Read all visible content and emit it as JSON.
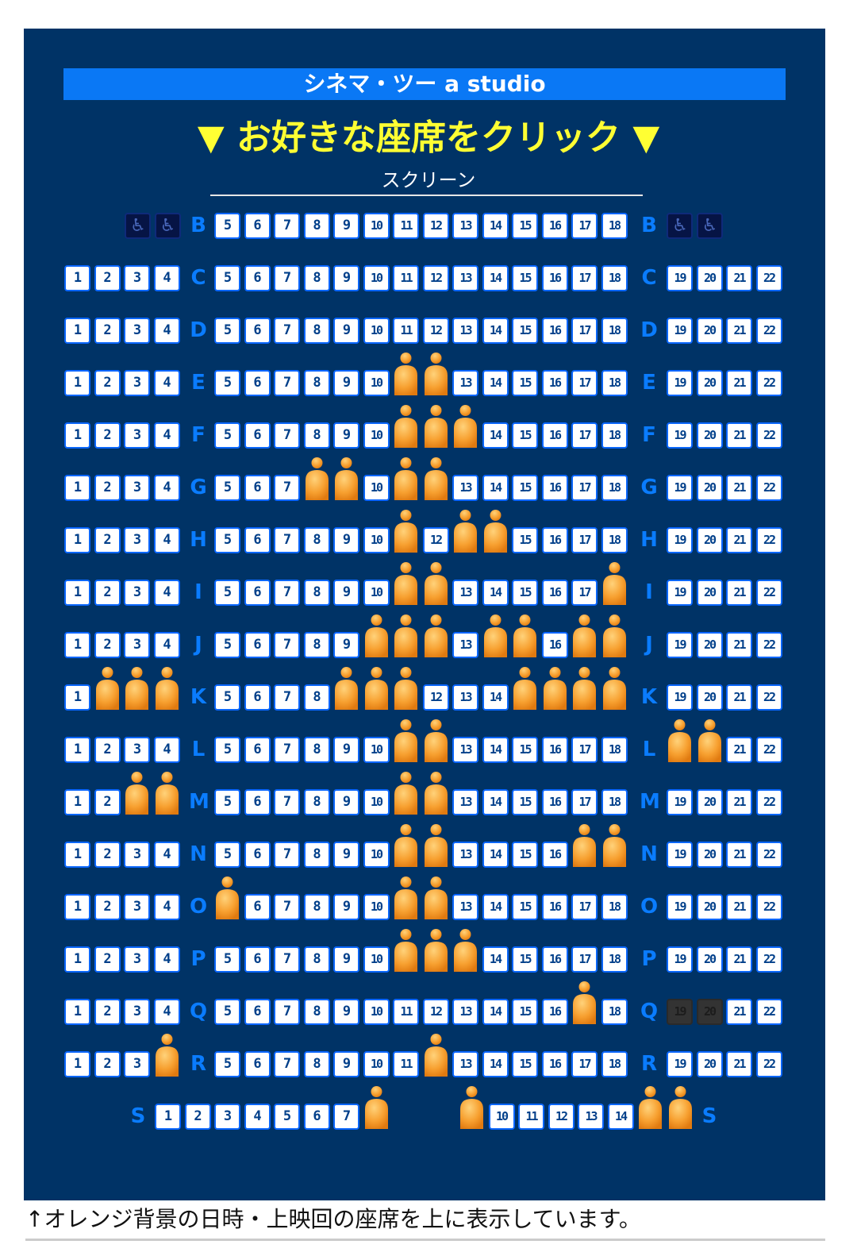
{
  "header": {
    "title": "シネマ・ツー a studio"
  },
  "instruction": "▼ お好きな座席をクリック ▼",
  "screen_label": "スクリーン",
  "footer_note": "↑オレンジ背景の日時・上映回の座席を上に表示しています。",
  "colors": {
    "panel": "#003366",
    "title_bar": "#0a78f5",
    "instruction": "#ffff33",
    "row_label": "#0a7cff",
    "seat_bg": "#ffffff",
    "seat_text": "#003f8a",
    "occupied": "#f5a033"
  },
  "legend_icons": {
    "wheelchair_seat": "wheelchair-icon",
    "occupied_seat": "person-icon"
  },
  "rows": [
    {
      "label": "B",
      "left": [],
      "center": [
        5,
        6,
        7,
        8,
        9,
        10,
        11,
        12,
        13,
        14,
        15,
        16,
        17,
        18
      ],
      "right": [],
      "wheelchair_left": 2,
      "wheelchair_right": 2,
      "occupied": [],
      "unavailable": []
    },
    {
      "label": "C",
      "left": [
        1,
        2,
        3,
        4
      ],
      "center": [
        5,
        6,
        7,
        8,
        9,
        10,
        11,
        12,
        13,
        14,
        15,
        16,
        17,
        18
      ],
      "right": [
        19,
        20,
        21,
        22
      ],
      "occupied": [],
      "unavailable": []
    },
    {
      "label": "D",
      "left": [
        1,
        2,
        3,
        4
      ],
      "center": [
        5,
        6,
        7,
        8,
        9,
        10,
        11,
        12,
        13,
        14,
        15,
        16,
        17,
        18
      ],
      "right": [
        19,
        20,
        21,
        22
      ],
      "occupied": [],
      "unavailable": []
    },
    {
      "label": "E",
      "left": [
        1,
        2,
        3,
        4
      ],
      "center": [
        5,
        6,
        7,
        8,
        9,
        10,
        11,
        12,
        13,
        14,
        15,
        16,
        17,
        18
      ],
      "right": [
        19,
        20,
        21,
        22
      ],
      "occupied": [
        11,
        12
      ],
      "unavailable": []
    },
    {
      "label": "F",
      "left": [
        1,
        2,
        3,
        4
      ],
      "center": [
        5,
        6,
        7,
        8,
        9,
        10,
        11,
        12,
        13,
        14,
        15,
        16,
        17,
        18
      ],
      "right": [
        19,
        20,
        21,
        22
      ],
      "occupied": [
        11,
        12,
        13
      ],
      "unavailable": []
    },
    {
      "label": "G",
      "left": [
        1,
        2,
        3,
        4
      ],
      "center": [
        5,
        6,
        7,
        8,
        9,
        10,
        11,
        12,
        13,
        14,
        15,
        16,
        17,
        18
      ],
      "right": [
        19,
        20,
        21,
        22
      ],
      "occupied": [
        8,
        9,
        11,
        12
      ],
      "unavailable": []
    },
    {
      "label": "H",
      "left": [
        1,
        2,
        3,
        4
      ],
      "center": [
        5,
        6,
        7,
        8,
        9,
        10,
        11,
        12,
        13,
        14,
        15,
        16,
        17,
        18
      ],
      "right": [
        19,
        20,
        21,
        22
      ],
      "occupied": [
        11,
        13,
        14
      ],
      "unavailable": []
    },
    {
      "label": "I",
      "left": [
        1,
        2,
        3,
        4
      ],
      "center": [
        5,
        6,
        7,
        8,
        9,
        10,
        11,
        12,
        13,
        14,
        15,
        16,
        17,
        18
      ],
      "right": [
        19,
        20,
        21,
        22
      ],
      "occupied": [
        11,
        12,
        18
      ],
      "unavailable": []
    },
    {
      "label": "J",
      "left": [
        1,
        2,
        3,
        4
      ],
      "center": [
        5,
        6,
        7,
        8,
        9,
        10,
        11,
        12,
        13,
        14,
        15,
        16,
        17,
        18
      ],
      "right": [
        19,
        20,
        21,
        22
      ],
      "occupied": [
        10,
        11,
        12,
        14,
        15,
        17,
        18
      ],
      "unavailable": []
    },
    {
      "label": "K",
      "left": [
        1,
        2,
        3,
        4
      ],
      "center": [
        5,
        6,
        7,
        8,
        9,
        10,
        11,
        12,
        13,
        14,
        15,
        16,
        17,
        18
      ],
      "right": [
        19,
        20,
        21,
        22
      ],
      "occupied": [
        2,
        3,
        4,
        9,
        10,
        11,
        15,
        16,
        17,
        18
      ],
      "unavailable": []
    },
    {
      "label": "L",
      "left": [
        1,
        2,
        3,
        4
      ],
      "center": [
        5,
        6,
        7,
        8,
        9,
        10,
        11,
        12,
        13,
        14,
        15,
        16,
        17,
        18
      ],
      "right": [
        19,
        20,
        21,
        22
      ],
      "occupied": [
        11,
        12,
        19,
        20
      ],
      "unavailable": []
    },
    {
      "label": "M",
      "left": [
        1,
        2,
        3,
        4
      ],
      "center": [
        5,
        6,
        7,
        8,
        9,
        10,
        11,
        12,
        13,
        14,
        15,
        16,
        17,
        18
      ],
      "right": [
        19,
        20,
        21,
        22
      ],
      "occupied": [
        3,
        4,
        11,
        12
      ],
      "unavailable": []
    },
    {
      "label": "N",
      "left": [
        1,
        2,
        3,
        4
      ],
      "center": [
        5,
        6,
        7,
        8,
        9,
        10,
        11,
        12,
        13,
        14,
        15,
        16,
        17,
        18
      ],
      "right": [
        19,
        20,
        21,
        22
      ],
      "occupied": [
        11,
        12,
        17,
        18
      ],
      "unavailable": []
    },
    {
      "label": "O",
      "left": [
        1,
        2,
        3,
        4
      ],
      "center": [
        5,
        6,
        7,
        8,
        9,
        10,
        11,
        12,
        13,
        14,
        15,
        16,
        17,
        18
      ],
      "right": [
        19,
        20,
        21,
        22
      ],
      "occupied": [
        5,
        11,
        12
      ],
      "unavailable": []
    },
    {
      "label": "P",
      "left": [
        1,
        2,
        3,
        4
      ],
      "center": [
        5,
        6,
        7,
        8,
        9,
        10,
        11,
        12,
        13,
        14,
        15,
        16,
        17,
        18
      ],
      "right": [
        19,
        20,
        21,
        22
      ],
      "occupied": [
        11,
        12,
        13
      ],
      "unavailable": []
    },
    {
      "label": "Q",
      "left": [
        1,
        2,
        3,
        4
      ],
      "center": [
        5,
        6,
        7,
        8,
        9,
        10,
        11,
        12,
        13,
        14,
        15,
        16,
        17,
        18
      ],
      "right": [
        19,
        20,
        21,
        22
      ],
      "occupied": [
        17
      ],
      "unavailable": [
        19,
        20
      ]
    },
    {
      "label": "R",
      "left": [
        1,
        2,
        3,
        4
      ],
      "center": [
        5,
        6,
        7,
        8,
        9,
        10,
        11,
        12,
        13,
        14,
        15,
        16,
        17,
        18
      ],
      "right": [
        19,
        20,
        21,
        22
      ],
      "occupied": [
        4,
        12
      ],
      "unavailable": []
    },
    {
      "label": "S",
      "seats": [
        1,
        2,
        3,
        4,
        5,
        6,
        7,
        8,
        9,
        10,
        11,
        12,
        13,
        14,
        15,
        16
      ],
      "occupied": [
        8,
        9,
        15,
        16
      ],
      "unavailable": []
    }
  ]
}
